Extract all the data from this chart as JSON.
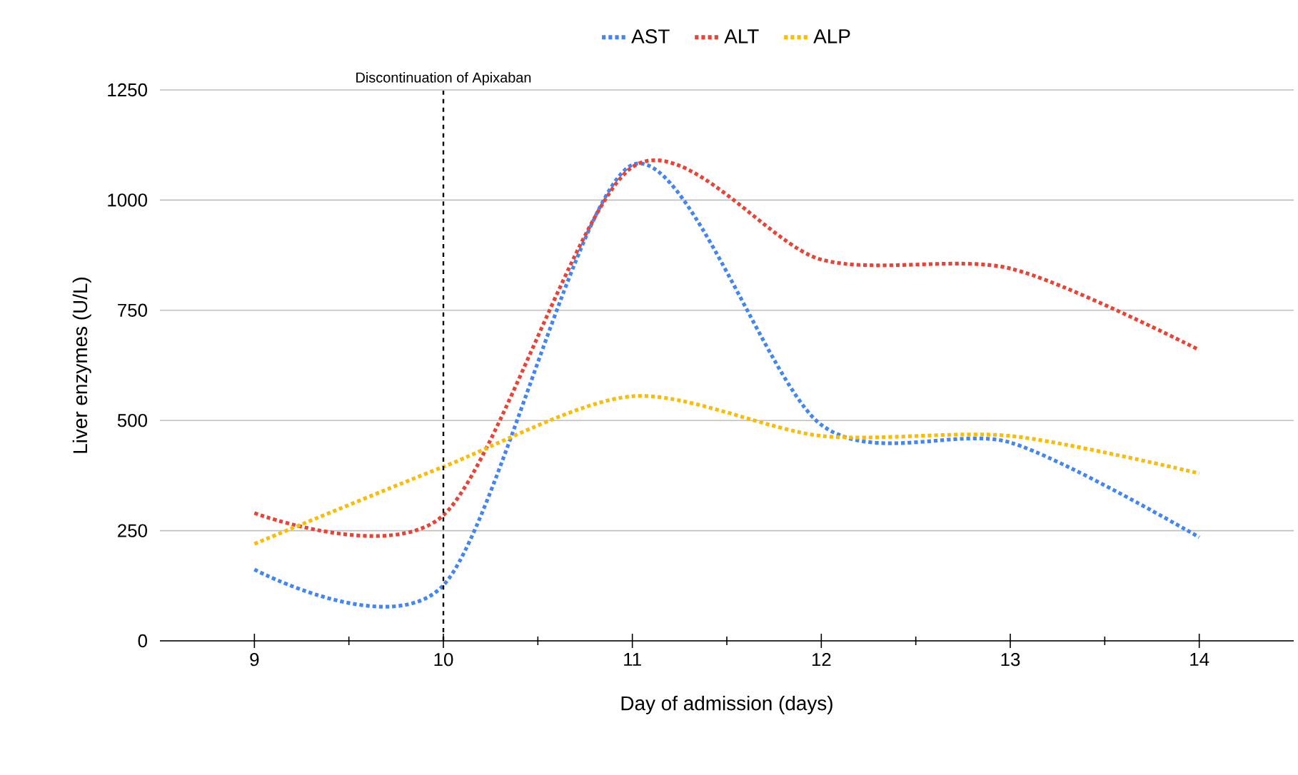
{
  "chart_data": {
    "type": "line",
    "xlabel": "Day of admission (days)",
    "ylabel": "Liver enzymes (U/L)",
    "x": [
      9,
      10,
      11,
      12,
      13,
      14
    ],
    "series": [
      {
        "name": "AST",
        "color": "#4285f4",
        "values": [
          162,
          126,
          1080,
          490,
          450,
          235
        ]
      },
      {
        "name": "ALT",
        "color": "#ea4335",
        "values": [
          290,
          285,
          1075,
          865,
          845,
          660
        ]
      },
      {
        "name": "ALP",
        "color": "#fbbc04",
        "values": [
          220,
          395,
          555,
          465,
          465,
          380
        ]
      }
    ],
    "xlim": [
      8.5,
      14.5
    ],
    "xticks": [
      9,
      10,
      11,
      12,
      13,
      14
    ],
    "ylim": [
      0,
      1250
    ],
    "yticks": [
      0,
      250,
      500,
      750,
      1000,
      1250
    ],
    "grid": "y",
    "legend": "top",
    "line_style": "dotted",
    "marker": "none",
    "ref_lines": [
      {
        "axis": "x",
        "value": 10,
        "label": "Discontinuation of Apixaban",
        "color": "#000000",
        "line_style": "dashed"
      }
    ]
  }
}
